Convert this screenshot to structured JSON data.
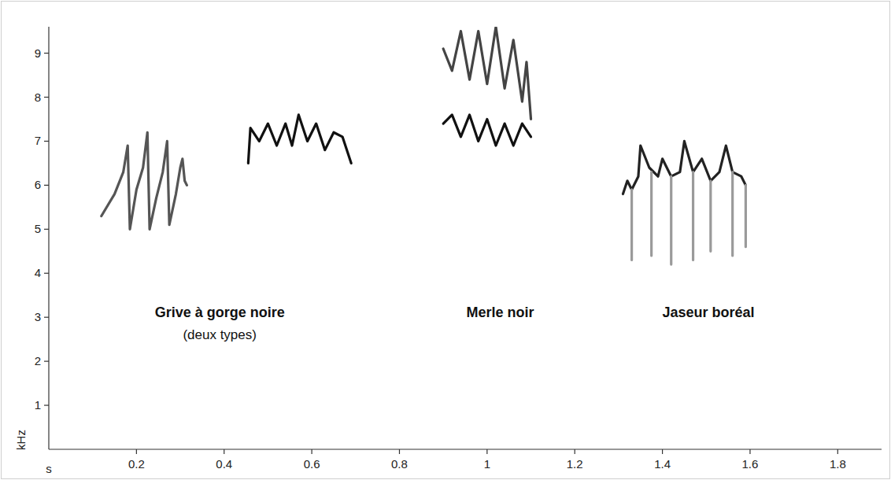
{
  "chart_data": {
    "type": "line",
    "x_label": "s",
    "y_label": "kHz",
    "xlim": [
      0,
      1.9
    ],
    "ylim": [
      0,
      9.6
    ],
    "xticks": [
      0.2,
      0.4,
      0.6,
      0.8,
      1,
      1.2,
      1.4,
      1.6,
      1.8
    ],
    "yticks": [
      1,
      2,
      3,
      4,
      5,
      6,
      7,
      8,
      9
    ],
    "grid": false,
    "series": [
      {
        "color": "#555555",
        "x": [
          0.12,
          0.15,
          0.17,
          0.18,
          0.185,
          0.2,
          0.215,
          0.225,
          0.23,
          0.245,
          0.26,
          0.27,
          0.275,
          0.29,
          0.3,
          0.305,
          0.31,
          0.315
        ],
        "values": [
          5.3,
          5.8,
          6.3,
          6.9,
          5.0,
          5.9,
          6.4,
          7.2,
          5.0,
          5.7,
          6.3,
          7.0,
          5.1,
          5.8,
          6.4,
          6.6,
          6.1,
          6.0
        ]
      },
      {
        "color": "#111111",
        "x": [
          0.455,
          0.46,
          0.48,
          0.5,
          0.52,
          0.54,
          0.555,
          0.57,
          0.59,
          0.61,
          0.63,
          0.65,
          0.67,
          0.69
        ],
        "values": [
          6.5,
          7.3,
          7.0,
          7.4,
          6.9,
          7.4,
          6.9,
          7.6,
          7.0,
          7.4,
          6.8,
          7.2,
          7.1,
          6.5
        ]
      },
      {
        "color": "#444444",
        "x": [
          0.9,
          0.92,
          0.94,
          0.96,
          0.98,
          1.0,
          1.02,
          1.04,
          1.06,
          1.08,
          1.09,
          1.1
        ],
        "values": [
          9.1,
          8.6,
          9.5,
          8.4,
          9.5,
          8.3,
          9.6,
          8.2,
          9.3,
          7.9,
          8.8,
          7.5
        ]
      },
      {
        "color": "#111111",
        "x": [
          0.9,
          0.92,
          0.94,
          0.96,
          0.98,
          1.0,
          1.02,
          1.04,
          1.06,
          1.08,
          1.1
        ],
        "values": [
          7.4,
          7.6,
          7.1,
          7.6,
          7.0,
          7.5,
          6.9,
          7.4,
          6.9,
          7.4,
          7.1
        ]
      },
      {
        "color": "#222222",
        "x": [
          1.31,
          1.32,
          1.33,
          1.345,
          1.35,
          1.37,
          1.39,
          1.4,
          1.42,
          1.44,
          1.45,
          1.47,
          1.49,
          1.51,
          1.53,
          1.545,
          1.56,
          1.58,
          1.59
        ],
        "values": [
          5.8,
          6.1,
          5.9,
          6.2,
          6.9,
          6.4,
          6.2,
          6.6,
          6.2,
          6.3,
          7.0,
          6.3,
          6.6,
          6.1,
          6.3,
          6.9,
          6.3,
          6.2,
          6.0
        ]
      },
      {
        "color": "#9a9a9a",
        "x": [
          1.33,
          1.33,
          1.33,
          1.375,
          1.375,
          1.375,
          1.42,
          1.42,
          1.42,
          1.47,
          1.47,
          1.47,
          1.51,
          1.51,
          1.51,
          1.56,
          1.56,
          1.56,
          1.59,
          1.59
        ],
        "values": [
          5.9,
          4.3,
          null,
          6.3,
          4.4,
          null,
          6.2,
          4.2,
          null,
          6.3,
          4.3,
          null,
          6.1,
          4.5,
          null,
          6.3,
          4.4,
          null,
          6.0,
          4.6
        ]
      }
    ],
    "annotations": [
      {
        "text": "Grive à gorge noire",
        "subtext": "(deux types)",
        "x": 0.39,
        "y": 3.0
      },
      {
        "text": "Merle noir",
        "x": 1.03,
        "y": 3.0
      },
      {
        "text": "Jaseur boréal",
        "x": 1.505,
        "y": 3.0
      }
    ]
  }
}
